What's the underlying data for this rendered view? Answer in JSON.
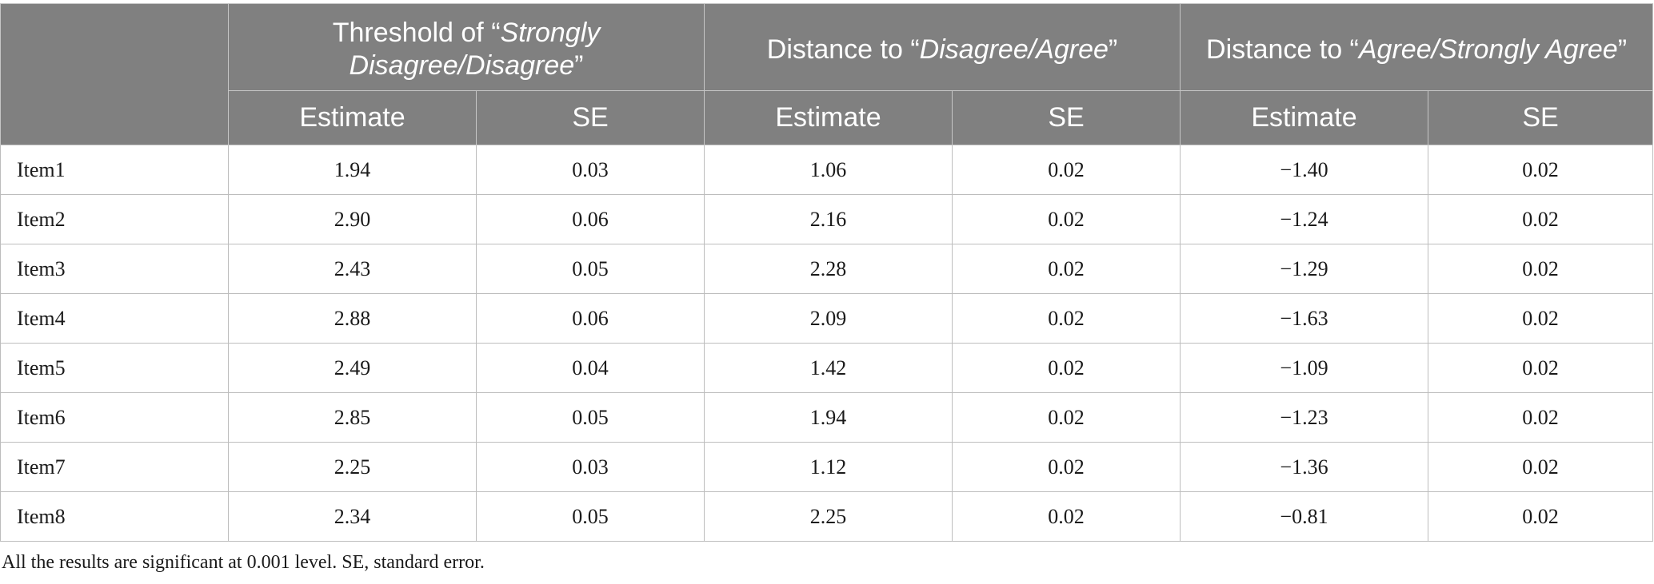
{
  "headers": {
    "corner": "",
    "group1": {
      "prefix": "Threshold of “",
      "emph": "Strongly Disagree/Disagree",
      "suffix": "”"
    },
    "group2": {
      "prefix": "Distance to “",
      "emph": "Disagree/Agree",
      "suffix": "”"
    },
    "group3": {
      "prefix": "Distance to “",
      "emph": "Agree/Strongly Agree",
      "suffix": "”"
    },
    "sub": [
      "Estimate",
      "SE",
      "Estimate",
      "SE",
      "Estimate",
      "SE"
    ]
  },
  "rows": [
    {
      "item": "Item1",
      "values": [
        "1.94",
        "0.03",
        "1.06",
        "0.02",
        "−1.40",
        "0.02"
      ]
    },
    {
      "item": "Item2",
      "values": [
        "2.90",
        "0.06",
        "2.16",
        "0.02",
        "−1.24",
        "0.02"
      ]
    },
    {
      "item": "Item3",
      "values": [
        "2.43",
        "0.05",
        "2.28",
        "0.02",
        "−1.29",
        "0.02"
      ]
    },
    {
      "item": "Item4",
      "values": [
        "2.88",
        "0.06",
        "2.09",
        "0.02",
        "−1.63",
        "0.02"
      ]
    },
    {
      "item": "Item5",
      "values": [
        "2.49",
        "0.04",
        "1.42",
        "0.02",
        "−1.09",
        "0.02"
      ]
    },
    {
      "item": "Item6",
      "values": [
        "2.85",
        "0.05",
        "1.94",
        "0.02",
        "−1.23",
        "0.02"
      ]
    },
    {
      "item": "Item7",
      "values": [
        "2.25",
        "0.03",
        "1.12",
        "0.02",
        "−1.36",
        "0.02"
      ]
    },
    {
      "item": "Item8",
      "values": [
        "2.34",
        "0.05",
        "2.25",
        "0.02",
        "−0.81",
        "0.02"
      ]
    }
  ],
  "footnote": "All the results are significant at 0.001 level. SE, standard error."
}
